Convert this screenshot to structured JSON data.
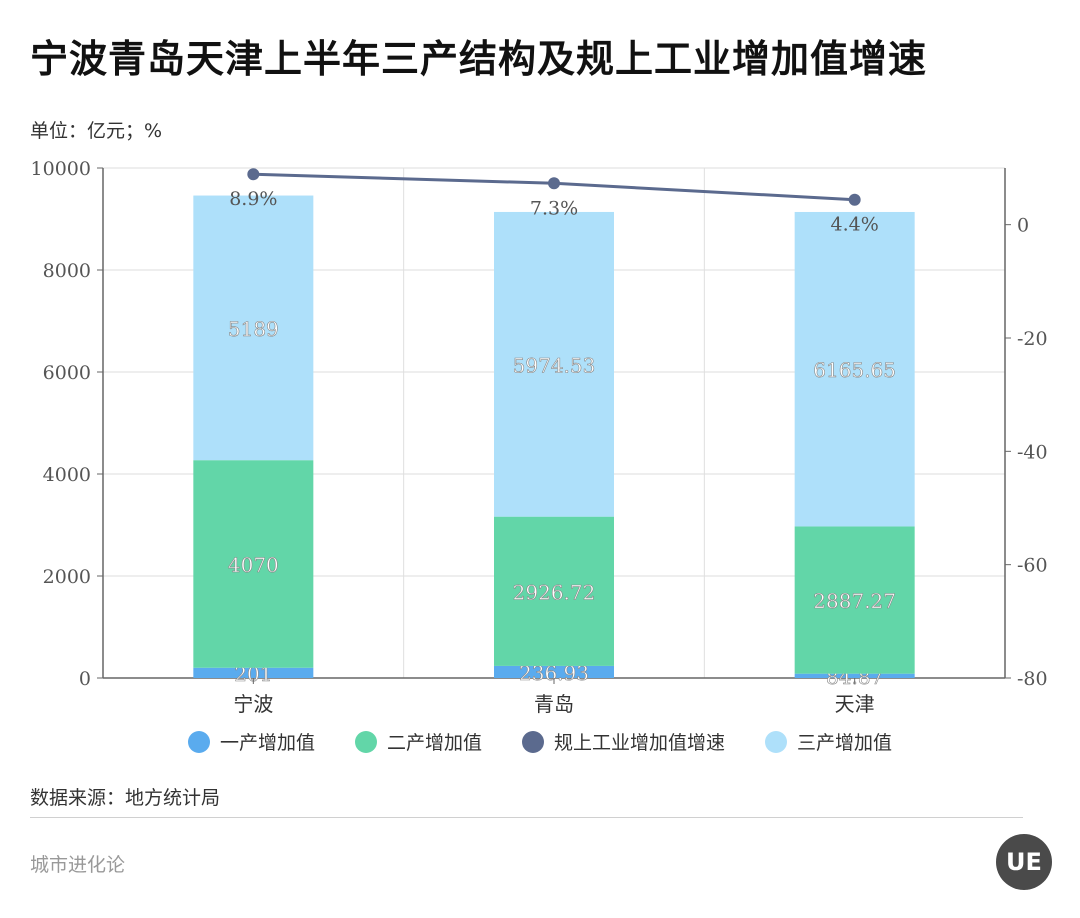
{
  "header": {
    "title": "宁波青岛天津上半年三产结构及规上工业增加值增速",
    "unit": "单位：亿元；%"
  },
  "chart_data": {
    "type": "bar",
    "stacked": true,
    "categories": [
      "宁波",
      "青岛",
      "天津"
    ],
    "series": [
      {
        "name": "一产增加值",
        "values": [
          201,
          236.93,
          84.87
        ],
        "labels": [
          "201",
          "236.93",
          "84.87"
        ],
        "color": "#5aabee",
        "axis": "left"
      },
      {
        "name": "二产增加值",
        "values": [
          4070,
          2926.72,
          2887.27
        ],
        "labels": [
          "4070",
          "2926.72",
          "2887.27"
        ],
        "color": "#62d6a8",
        "axis": "left"
      },
      {
        "name": "三产增加值",
        "values": [
          5189,
          5974.53,
          6165.65
        ],
        "labels": [
          "5189",
          "5974.53",
          "6165.65"
        ],
        "color": "#aee0fa",
        "axis": "left"
      },
      {
        "name": "规上工业增加值增速",
        "type": "line",
        "values": [
          8.9,
          7.3,
          4.4
        ],
        "labels": [
          "8.9%",
          "7.3%",
          "4.4%"
        ],
        "color": "#5b6a8e",
        "axis": "right"
      }
    ],
    "legend_order": [
      "一产增加值",
      "二产增加值",
      "规上工业增加值增速",
      "三产增加值"
    ],
    "legend_position": "bottom",
    "ylim": [
      0,
      10000
    ],
    "yticks": [
      "0",
      "2000",
      "4000",
      "6000",
      "8000",
      "10000"
    ],
    "y2lim": [
      -80,
      10
    ],
    "y2ticks": [
      "0",
      "-20",
      "-40",
      "-60",
      "-80"
    ],
    "grid": true
  },
  "footer": {
    "source": "数据来源：地方统计局",
    "brand": "城市进化论",
    "logo_text": "UE"
  }
}
